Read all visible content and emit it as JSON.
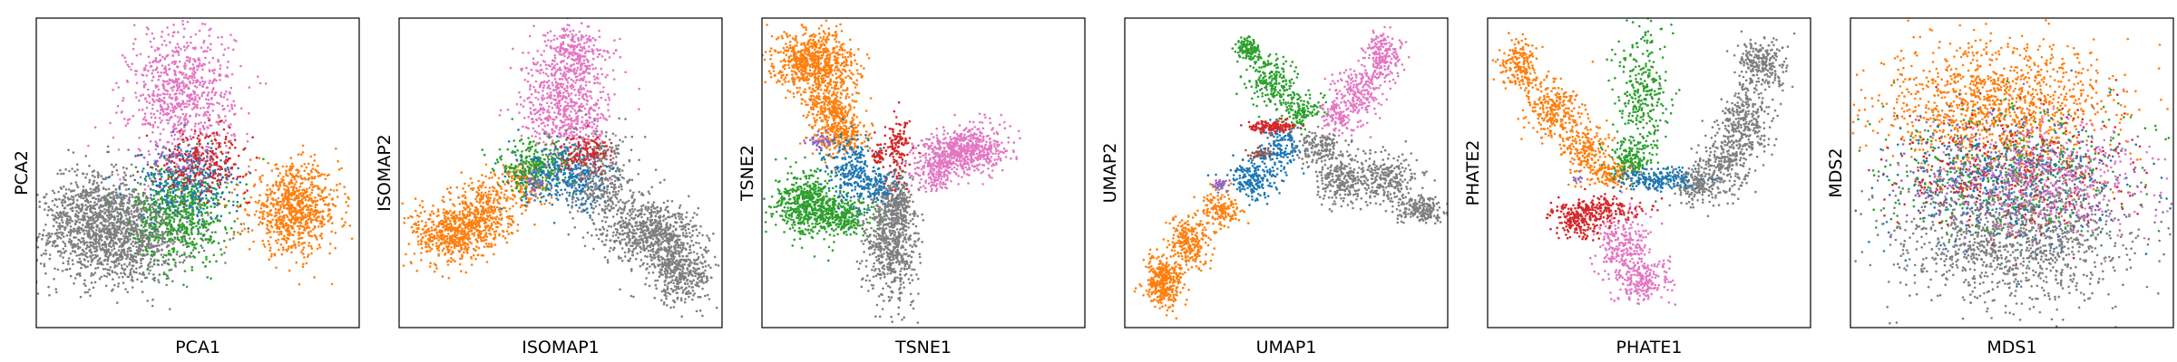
{
  "colors": {
    "c_blue": "#1f77b4",
    "c_orange": "#ff7f0e",
    "c_green": "#2ca02c",
    "c_red": "#d62728",
    "c_purple": "#9467bd",
    "c_brown": "#8c564b",
    "c_pink": "#e377c2",
    "c_gray": "#7f7f7f"
  },
  "chart_data": [
    {
      "type": "scatter",
      "xlabel": "PCA1",
      "ylabel": "PCA2",
      "xlim": [
        0,
        100
      ],
      "ylim": [
        0,
        100
      ],
      "grid": false,
      "series": [
        {
          "color": "#7f7f7f",
          "clusters": [
            [
              25,
              30,
              12,
              8,
              1400
            ],
            [
              18,
              40,
              7,
              7,
              350
            ]
          ]
        },
        {
          "color": "#2ca02c",
          "clusters": [
            [
              45,
              37,
              7,
              8,
              600
            ]
          ]
        },
        {
          "color": "#ff7f0e",
          "clusters": [
            [
              80,
              38,
              7,
              7,
              800
            ]
          ]
        },
        {
          "color": "#e377c2",
          "clusters": [
            [
              45,
              75,
              8,
              11,
              800
            ]
          ]
        },
        {
          "color": "#1f77b4",
          "clusters": [
            [
              47,
              47,
              8,
              6,
              300
            ]
          ]
        },
        {
          "color": "#d62728",
          "clusters": [
            [
              52,
              54,
              7,
              5,
              250
            ]
          ]
        },
        {
          "color": "#9467bd",
          "clusters": [
            [
              44,
              54,
              4,
              3,
              50
            ]
          ]
        }
      ]
    },
    {
      "type": "scatter",
      "xlabel": "ISOMAP1",
      "ylabel": "ISOMAP2",
      "xlim": [
        0,
        100
      ],
      "ylim": [
        0,
        100
      ],
      "grid": false,
      "series": [
        {
          "color": "#ff7f0e",
          "clusters": [
            [
              16,
              30,
              6,
              5,
              500
            ],
            [
              26,
              38,
              5,
              5,
              350
            ],
            [
              38,
              47,
              4,
              4,
              150
            ]
          ]
        },
        {
          "color": "#e377c2",
          "clusters": [
            [
              52,
              72,
              7,
              10,
              700
            ],
            [
              54,
              90,
              4,
              4,
              200
            ]
          ]
        },
        {
          "color": "#7f7f7f",
          "clusters": [
            [
              62,
              48,
              5,
              7,
              400
            ],
            [
              74,
              32,
              6,
              6,
              400
            ],
            [
              88,
              18,
              5,
              5,
              400
            ],
            [
              82,
              30,
              5,
              5,
              300
            ]
          ]
        },
        {
          "color": "#2ca02c",
          "clusters": [
            [
              42,
              52,
              6,
              4,
              300
            ]
          ]
        },
        {
          "color": "#1f77b4",
          "clusters": [
            [
              52,
              48,
              7,
              5,
              300
            ]
          ]
        },
        {
          "color": "#d62728",
          "clusters": [
            [
              58,
              57,
              4,
              3,
              120
            ]
          ]
        },
        {
          "color": "#9467bd",
          "clusters": [
            [
              42,
              47,
              2,
              2,
              30
            ]
          ]
        }
      ]
    },
    {
      "type": "scatter",
      "xlabel": "TSNE1",
      "ylabel": "TSNE2",
      "xlim": [
        0,
        100
      ],
      "ylim": [
        0,
        100
      ],
      "grid": false,
      "series": [
        {
          "color": "#ff7f0e",
          "clusters": [
            [
              16,
              86,
              6,
              5,
              700
            ],
            [
              22,
              70,
              4,
              6,
              400
            ],
            [
              26,
              62,
              3,
              3,
              150
            ]
          ]
        },
        {
          "color": "#2ca02c",
          "clusters": [
            [
              14,
              40,
              5,
              5,
              500
            ],
            [
              24,
              36,
              5,
              3,
              300
            ]
          ]
        },
        {
          "color": "#e377c2",
          "clusters": [
            [
              58,
              56,
              5,
              3,
              300
            ],
            [
              66,
              58,
              5,
              4,
              350
            ],
            [
              54,
              50,
              4,
              3,
              150
            ]
          ]
        },
        {
          "color": "#7f7f7f",
          "clusters": [
            [
              40,
              28,
              4,
              10,
              700
            ],
            [
              42,
              42,
              2,
              4,
              150
            ]
          ]
        },
        {
          "color": "#1f77b4",
          "clusters": [
            [
              28,
              50,
              4,
              6,
              250
            ],
            [
              36,
              46,
              3,
              3,
              100
            ]
          ]
        },
        {
          "color": "#d62728",
          "clusters": [
            [
              42,
              58,
              2,
              5,
              130
            ],
            [
              36,
              56,
              1,
              2,
              40
            ]
          ]
        },
        {
          "color": "#9467bd",
          "clusters": [
            [
              18,
              60,
              2,
              1.5,
              50
            ]
          ]
        }
      ]
    },
    {
      "type": "scatter",
      "xlabel": "UMAP1",
      "ylabel": "UMAP2",
      "xlim": [
        0,
        100
      ],
      "ylim": [
        0,
        100
      ],
      "grid": false,
      "series": [
        {
          "color": "#ff7f0e",
          "clusters": [
            [
              12,
              15,
              3,
              4,
              350
            ],
            [
              20,
              27,
              3,
              4,
              250
            ],
            [
              30,
              38,
              3,
              3,
              150
            ]
          ]
        },
        {
          "color": "#1f77b4",
          "clusters": [
            [
              40,
              48,
              4,
              3,
              200
            ],
            [
              48,
              58,
              3,
              3,
              150
            ]
          ]
        },
        {
          "color": "#2ca02c",
          "clusters": [
            [
              45,
              80,
              4,
              4,
              200
            ],
            [
              54,
              70,
              3,
              3,
              150
            ],
            [
              38,
              90,
              2,
              2,
              120
            ]
          ]
        },
        {
          "color": "#e377c2",
          "clusters": [
            [
              72,
              76,
              4,
              4,
              200
            ],
            [
              80,
              88,
              3,
              4,
              200
            ],
            [
              66,
              68,
              3,
              3,
              120
            ]
          ]
        },
        {
          "color": "#7f7f7f",
          "clusters": [
            [
              68,
              48,
              4,
              4,
              250
            ],
            [
              82,
              48,
              5,
              4,
              250
            ],
            [
              92,
              38,
              4,
              2,
              200
            ],
            [
              60,
              58,
              3,
              3,
              150
            ]
          ]
        },
        {
          "color": "#d62728",
          "clusters": [
            [
              45,
              65,
              4,
              1,
              150
            ]
          ]
        },
        {
          "color": "#8c564b",
          "clusters": [
            [
              42,
              56,
              2,
              1,
              40
            ]
          ]
        },
        {
          "color": "#9467bd",
          "clusters": [
            [
              30,
              46,
              1.5,
              1,
              40
            ]
          ]
        }
      ]
    },
    {
      "type": "scatter",
      "xlabel": "PHATE1",
      "ylabel": "PHATE2",
      "xlim": [
        0,
        100
      ],
      "ylim": [
        0,
        100
      ],
      "grid": false,
      "series": [
        {
          "color": "#ff7f0e",
          "clusters": [
            [
              10,
              85,
              3,
              4,
              200
            ],
            [
              20,
              70,
              4,
              5,
              250
            ],
            [
              30,
              58,
              4,
              4,
              200
            ],
            [
              38,
              50,
              4,
              2,
              150
            ]
          ]
        },
        {
          "color": "#2ca02c",
          "clusters": [
            [
              48,
              75,
              4,
              12,
              300
            ],
            [
              44,
              55,
              3,
              4,
              150
            ]
          ]
        },
        {
          "color": "#7f7f7f",
          "clusters": [
            [
              85,
              85,
              4,
              4,
              250
            ],
            [
              80,
              65,
              4,
              6,
              300
            ],
            [
              72,
              52,
              4,
              5,
              250
            ],
            [
              64,
              46,
              3,
              3,
              150
            ]
          ]
        },
        {
          "color": "#e377c2",
          "clusters": [
            [
              42,
              25,
              4,
              6,
              250
            ],
            [
              48,
              15,
              4,
              4,
              200
            ]
          ]
        },
        {
          "color": "#d62728",
          "clusters": [
            [
              28,
              35,
              4,
              3,
              200
            ],
            [
              38,
              38,
              6,
              2,
              150
            ]
          ]
        },
        {
          "color": "#1f77b4",
          "clusters": [
            [
              52,
              48,
              6,
              2,
              200
            ]
          ]
        },
        {
          "color": "#9467bd",
          "clusters": [
            [
              28,
              48,
              1,
              1,
              10
            ]
          ]
        }
      ]
    },
    {
      "type": "scatter",
      "xlabel": "MDS1",
      "ylabel": "MDS2",
      "xlim": [
        0,
        100
      ],
      "ylim": [
        0,
        100
      ],
      "grid": false,
      "series": [
        {
          "color": "#ff7f0e",
          "clusters": [
            [
              45,
              72,
              18,
              10,
              1200
            ]
          ]
        },
        {
          "color": "#7f7f7f",
          "clusters": [
            [
              50,
              28,
              18,
              10,
              1200
            ]
          ]
        },
        {
          "color": "#2ca02c",
          "clusters": [
            [
              50,
              50,
              20,
              10,
              500
            ]
          ]
        },
        {
          "color": "#d62728",
          "clusters": [
            [
              50,
              50,
              20,
              10,
              400
            ]
          ]
        },
        {
          "color": "#1f77b4",
          "clusters": [
            [
              48,
              48,
              18,
              10,
              400
            ]
          ]
        },
        {
          "color": "#e377c2",
          "clusters": [
            [
              62,
              48,
              16,
              9,
              400
            ]
          ]
        },
        {
          "color": "#9467bd",
          "clusters": [
            [
              50,
              48,
              18,
              10,
              300
            ]
          ]
        }
      ]
    }
  ]
}
